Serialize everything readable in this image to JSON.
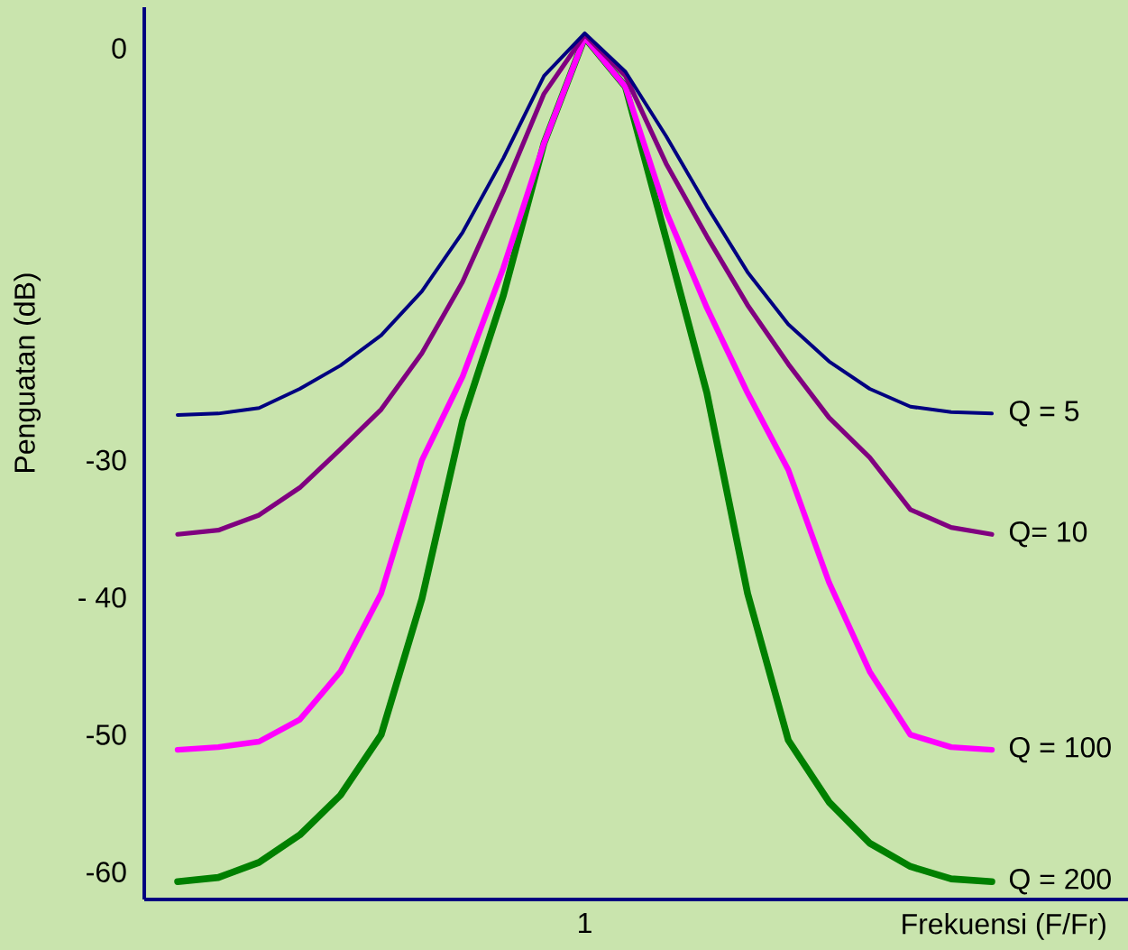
{
  "chart_data": {
    "type": "line",
    "xlabel": "Frekuensi (F/Fr)",
    "ylabel": "Penguatan (dB)",
    "categories": [
      null,
      null,
      null,
      null,
      null,
      null,
      null,
      null,
      null,
      null,
      "1",
      null,
      null,
      null,
      null,
      null,
      null,
      null,
      null,
      null,
      null
    ],
    "ylim": [
      -62,
      3
    ],
    "yticks": [
      -60,
      -50,
      {
        "value": -40,
        "label": "- 40"
      },
      -30,
      0
    ],
    "series": [
      {
        "name": "Q = 5",
        "color": "#000080",
        "values": [
          -26.7,
          -26.6,
          -26.2,
          -24.8,
          -23.1,
          -20.9,
          -17.7,
          -13.4,
          -8.0,
          -2.0,
          1.1,
          -1.7,
          -6.4,
          -11.5,
          -16.3,
          -20.1,
          -22.8,
          -24.8,
          -26.1,
          -26.5,
          -26.6
        ]
      },
      {
        "name": "Q= 10",
        "color": "#800080",
        "values": [
          -35.4,
          -35.1,
          -34.0,
          -32.0,
          -29.2,
          -26.3,
          -22.2,
          -17.0,
          -10.4,
          -3.3,
          1.0,
          -2.0,
          -8.4,
          -13.7,
          -18.7,
          -23.0,
          -26.9,
          -29.8,
          -33.6,
          -34.9,
          -35.4
        ]
      },
      {
        "name": "Q = 100",
        "color": "#ff00ff",
        "values": [
          -51.1,
          -50.9,
          -50.5,
          -48.9,
          -45.4,
          -39.7,
          -30.0,
          -23.9,
          -16.0,
          -6.9,
          0.8,
          -2.8,
          -11.9,
          -18.9,
          -25.1,
          -30.7,
          -38.9,
          -45.4,
          -50.0,
          -50.9,
          -51.1
        ]
      },
      {
        "name": "Q = 200",
        "color": "#008000",
        "values": [
          -60.7,
          -60.4,
          -59.3,
          -57.3,
          -54.4,
          -50.0,
          -40.1,
          -27.1,
          -18.0,
          -6.9,
          0.8,
          -2.8,
          -13.9,
          -25.1,
          -39.7,
          -50.4,
          -54.9,
          -57.9,
          -59.6,
          -60.5,
          -60.7
        ]
      }
    ]
  }
}
